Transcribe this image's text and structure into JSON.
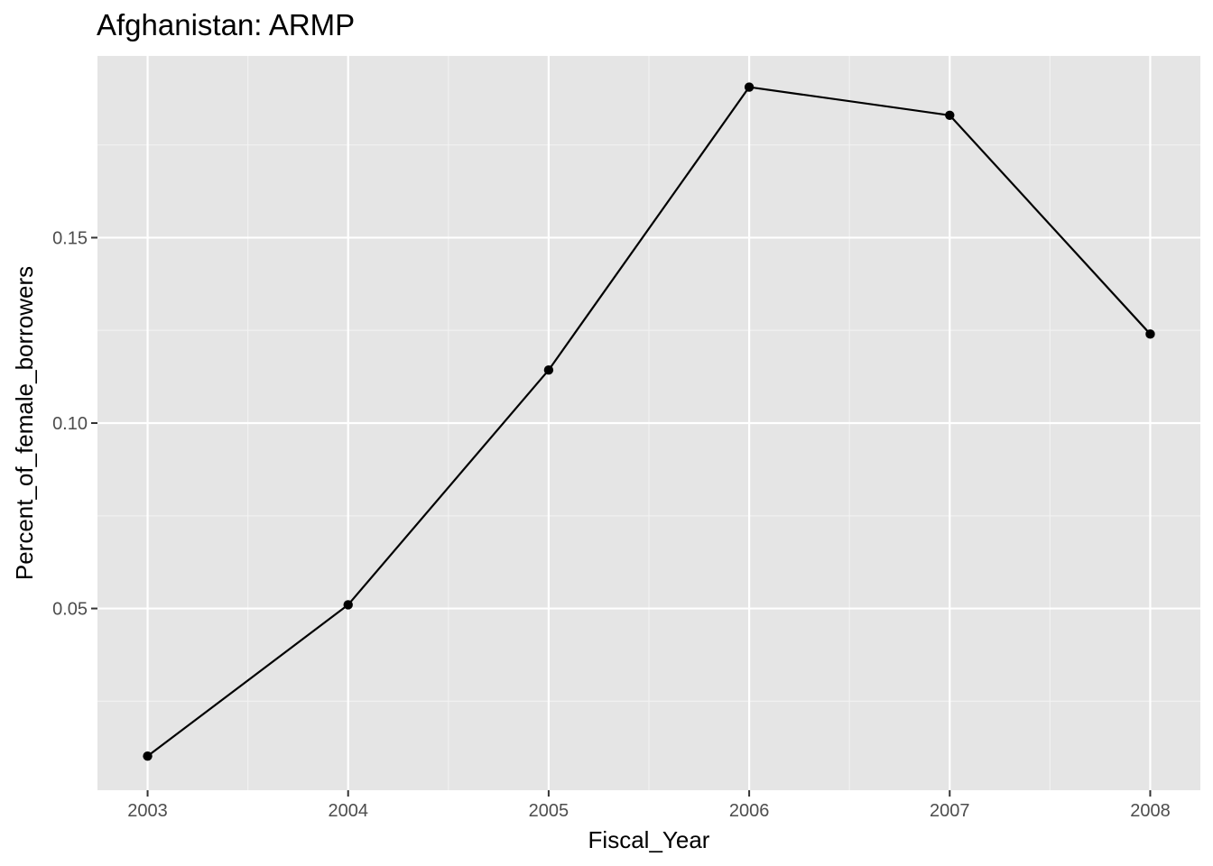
{
  "chart_data": {
    "type": "line",
    "title": "Afghanistan:  ARMP",
    "xlabel": "Fiscal_Year",
    "ylabel": "Percent_of_female_borrowers",
    "x": [
      2003,
      2004,
      2005,
      2006,
      2007,
      2008
    ],
    "y": [
      0.0102,
      0.051,
      0.1143,
      0.1906,
      0.183,
      0.124
    ],
    "x_ticks": [
      "2003",
      "2004",
      "2005",
      "2006",
      "2007",
      "2008"
    ],
    "y_ticks": [
      0.05,
      0.1,
      0.15
    ],
    "y_tick_labels": [
      "0.05",
      "0.10",
      "0.15"
    ],
    "xlim": [
      2002.75,
      2008.25
    ],
    "ylim": [
      0.001,
      0.199
    ],
    "grid": true,
    "legend": "none",
    "colors": {
      "panel_background": "#e5e5e5",
      "grid_major": "#ffffff",
      "grid_minor": "#f2f2f2",
      "line": "#000000",
      "point": "#000000",
      "tick_label": "#4d4d4d"
    }
  }
}
